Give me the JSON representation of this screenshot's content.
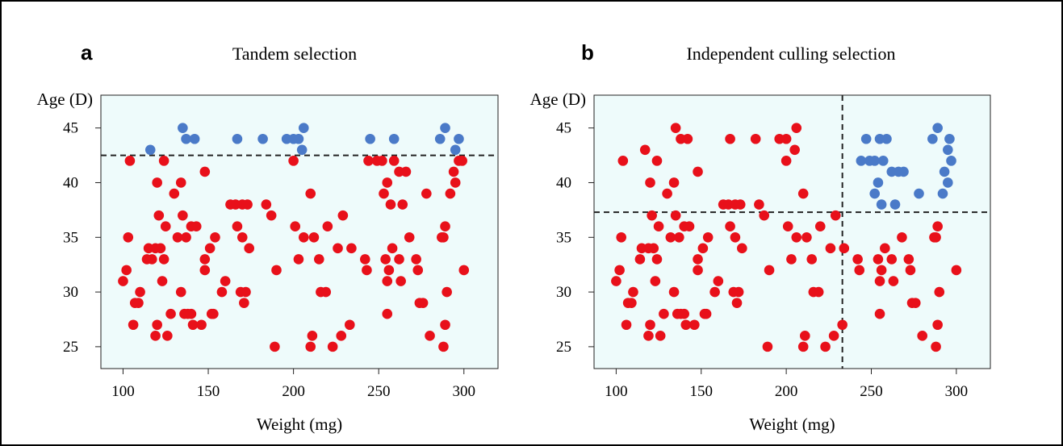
{
  "chart_data": [
    {
      "type": "scatter",
      "panel_letter": "a",
      "title": "Tandem selection",
      "xlabel": "Weight (mg)",
      "ylabel": "Age (D)",
      "xlim": [
        87,
        320
      ],
      "ylim": [
        23,
        48
      ],
      "xticks": [
        100,
        150,
        200,
        250,
        300
      ],
      "yticks": [
        25,
        30,
        35,
        40,
        45
      ],
      "background": "#eefbfb",
      "grid": false,
      "thresholds": {
        "y": 42.5
      },
      "series": [
        {
          "color": "#e8101a",
          "points": [
            [
              100,
              31
            ],
            [
              102,
              32
            ],
            [
              103,
              35
            ],
            [
              104,
              42
            ],
            [
              106,
              27
            ],
            [
              107,
              29
            ],
            [
              109,
              29
            ],
            [
              110,
              30
            ],
            [
              114,
              33
            ],
            [
              115,
              34
            ],
            [
              117,
              33
            ],
            [
              119,
              34
            ],
            [
              119,
              26
            ],
            [
              120,
              40
            ],
            [
              120,
              27
            ],
            [
              121,
              37
            ],
            [
              122,
              34
            ],
            [
              123,
              31
            ],
            [
              124,
              42
            ],
            [
              124,
              33
            ],
            [
              125,
              36
            ],
            [
              126,
              26
            ],
            [
              128,
              28
            ],
            [
              130,
              39
            ],
            [
              132,
              35
            ],
            [
              134,
              30
            ],
            [
              134,
              40
            ],
            [
              135,
              37
            ],
            [
              136,
              28
            ],
            [
              137,
              35
            ],
            [
              138,
              28
            ],
            [
              140,
              36
            ],
            [
              140,
              28
            ],
            [
              141,
              27
            ],
            [
              143,
              36
            ],
            [
              146,
              27
            ],
            [
              148,
              41
            ],
            [
              148,
              33
            ],
            [
              148,
              32
            ],
            [
              151,
              34
            ],
            [
              152,
              28
            ],
            [
              153,
              28
            ],
            [
              154,
              35
            ],
            [
              158,
              30
            ],
            [
              160,
              31
            ],
            [
              163,
              38
            ],
            [
              166,
              38
            ],
            [
              167,
              36
            ],
            [
              169,
              30
            ],
            [
              170,
              38
            ],
            [
              170,
              35
            ],
            [
              171,
              29
            ],
            [
              172,
              30
            ],
            [
              173,
              38
            ],
            [
              174,
              34
            ],
            [
              184,
              38
            ],
            [
              187,
              37
            ],
            [
              189,
              25
            ],
            [
              190,
              32
            ],
            [
              200,
              42
            ],
            [
              201,
              36
            ],
            [
              203,
              33
            ],
            [
              206,
              35
            ],
            [
              210,
              39
            ],
            [
              210,
              25
            ],
            [
              211,
              26
            ],
            [
              212,
              35
            ],
            [
              215,
              33
            ],
            [
              216,
              30
            ],
            [
              219,
              30
            ],
            [
              220,
              36
            ],
            [
              223,
              25
            ],
            [
              226,
              34
            ],
            [
              228,
              26
            ],
            [
              229,
              37
            ],
            [
              233,
              27
            ],
            [
              234,
              34
            ],
            [
              242,
              33
            ],
            [
              243,
              32
            ],
            [
              244,
              42
            ],
            [
              249,
              42
            ],
            [
              252,
              42
            ],
            [
              253,
              39
            ],
            [
              254,
              33
            ],
            [
              255,
              40
            ],
            [
              255,
              31
            ],
            [
              255,
              28
            ],
            [
              256,
              32
            ],
            [
              257,
              38
            ],
            [
              258,
              34
            ],
            [
              259,
              42
            ],
            [
              262,
              33
            ],
            [
              262,
              41
            ],
            [
              263,
              31
            ],
            [
              264,
              38
            ],
            [
              266,
              41
            ],
            [
              268,
              35
            ],
            [
              272,
              33
            ],
            [
              273,
              32
            ],
            [
              274,
              29
            ],
            [
              276,
              29
            ],
            [
              278,
              39
            ],
            [
              280,
              26
            ],
            [
              287,
              35
            ],
            [
              288,
              25
            ],
            [
              288,
              35
            ],
            [
              289,
              27
            ],
            [
              289,
              36
            ],
            [
              290,
              30
            ],
            [
              292,
              39
            ],
            [
              294,
              41
            ],
            [
              295,
              40
            ],
            [
              297,
              42
            ],
            [
              299,
              42
            ],
            [
              300,
              32
            ]
          ]
        },
        {
          "color": "#4a7ac8",
          "points": [
            [
              116,
              43
            ],
            [
              135,
              45
            ],
            [
              137,
              44
            ],
            [
              142,
              44
            ],
            [
              167,
              44
            ],
            [
              182,
              44
            ],
            [
              196,
              44
            ],
            [
              200,
              44
            ],
            [
              203,
              44
            ],
            [
              205,
              43
            ],
            [
              206,
              45
            ],
            [
              245,
              44
            ],
            [
              259,
              44
            ],
            [
              286,
              44
            ],
            [
              289,
              45
            ],
            [
              295,
              43
            ],
            [
              297,
              44
            ]
          ]
        }
      ]
    },
    {
      "type": "scatter",
      "panel_letter": "b",
      "title": "Independent culling selection",
      "xlabel": "Weight (mg)",
      "ylabel": "Age (D)",
      "xlim": [
        87,
        320
      ],
      "ylim": [
        23,
        48
      ],
      "xticks": [
        100,
        150,
        200,
        250,
        300
      ],
      "yticks": [
        25,
        30,
        35,
        40,
        45
      ],
      "background": "#eefbfb",
      "grid": false,
      "thresholds": {
        "x": 233,
        "y": 37.3
      },
      "series": [
        {
          "color": "#e8101a",
          "points": [
            [
              100,
              31
            ],
            [
              102,
              32
            ],
            [
              103,
              35
            ],
            [
              104,
              42
            ],
            [
              106,
              27
            ],
            [
              107,
              29
            ],
            [
              109,
              29
            ],
            [
              110,
              30
            ],
            [
              114,
              33
            ],
            [
              115,
              34
            ],
            [
              117,
              43
            ],
            [
              119,
              34
            ],
            [
              119,
              26
            ],
            [
              120,
              40
            ],
            [
              120,
              27
            ],
            [
              121,
              37
            ],
            [
              122,
              34
            ],
            [
              123,
              31
            ],
            [
              124,
              42
            ],
            [
              124,
              33
            ],
            [
              125,
              36
            ],
            [
              126,
              26
            ],
            [
              128,
              28
            ],
            [
              130,
              39
            ],
            [
              132,
              35
            ],
            [
              134,
              30
            ],
            [
              134,
              40
            ],
            [
              135,
              45
            ],
            [
              135,
              37
            ],
            [
              136,
              28
            ],
            [
              137,
              35
            ],
            [
              138,
              28
            ],
            [
              138,
              44
            ],
            [
              140,
              36
            ],
            [
              140,
              28
            ],
            [
              141,
              27
            ],
            [
              142,
              44
            ],
            [
              143,
              36
            ],
            [
              146,
              27
            ],
            [
              148,
              41
            ],
            [
              148,
              33
            ],
            [
              148,
              32
            ],
            [
              151,
              34
            ],
            [
              152,
              28
            ],
            [
              153,
              28
            ],
            [
              154,
              35
            ],
            [
              158,
              30
            ],
            [
              160,
              31
            ],
            [
              163,
              38
            ],
            [
              166,
              38
            ],
            [
              167,
              44
            ],
            [
              167,
              36
            ],
            [
              169,
              30
            ],
            [
              170,
              38
            ],
            [
              170,
              35
            ],
            [
              171,
              29
            ],
            [
              172,
              30
            ],
            [
              173,
              38
            ],
            [
              174,
              34
            ],
            [
              182,
              44
            ],
            [
              184,
              38
            ],
            [
              187,
              37
            ],
            [
              189,
              25
            ],
            [
              190,
              32
            ],
            [
              196,
              44
            ],
            [
              200,
              44
            ],
            [
              200,
              42
            ],
            [
              201,
              36
            ],
            [
              203,
              33
            ],
            [
              205,
              43
            ],
            [
              206,
              45
            ],
            [
              206,
              35
            ],
            [
              210,
              39
            ],
            [
              210,
              25
            ],
            [
              211,
              26
            ],
            [
              212,
              35
            ],
            [
              215,
              33
            ],
            [
              216,
              30
            ],
            [
              219,
              30
            ],
            [
              220,
              36
            ],
            [
              223,
              25
            ],
            [
              226,
              34
            ],
            [
              228,
              26
            ],
            [
              229,
              37
            ],
            [
              233,
              27
            ],
            [
              234,
              34
            ],
            [
              242,
              33
            ],
            [
              243,
              32
            ],
            [
              254,
              33
            ],
            [
              255,
              31
            ],
            [
              255,
              28
            ],
            [
              256,
              32
            ],
            [
              258,
              34
            ],
            [
              262,
              33
            ],
            [
              263,
              31
            ],
            [
              268,
              35
            ],
            [
              272,
              33
            ],
            [
              273,
              32
            ],
            [
              274,
              29
            ],
            [
              276,
              29
            ],
            [
              280,
              26
            ],
            [
              287,
              35
            ],
            [
              288,
              25
            ],
            [
              288,
              35
            ],
            [
              289,
              27
            ],
            [
              289,
              36
            ],
            [
              290,
              30
            ],
            [
              300,
              32
            ]
          ]
        },
        {
          "color": "#4a7ac8",
          "points": [
            [
              244,
              42
            ],
            [
              247,
              44
            ],
            [
              249,
              42
            ],
            [
              252,
              42
            ],
            [
              252,
              39
            ],
            [
              254,
              40
            ],
            [
              255,
              44
            ],
            [
              256,
              38
            ],
            [
              257,
              42
            ],
            [
              259,
              44
            ],
            [
              262,
              41
            ],
            [
              264,
              38
            ],
            [
              266,
              41
            ],
            [
              269,
              41
            ],
            [
              278,
              39
            ],
            [
              286,
              44
            ],
            [
              289,
              45
            ],
            [
              292,
              39
            ],
            [
              293,
              41
            ],
            [
              295,
              40
            ],
            [
              295,
              43
            ],
            [
              296,
              44
            ],
            [
              297,
              42
            ]
          ]
        }
      ]
    }
  ]
}
